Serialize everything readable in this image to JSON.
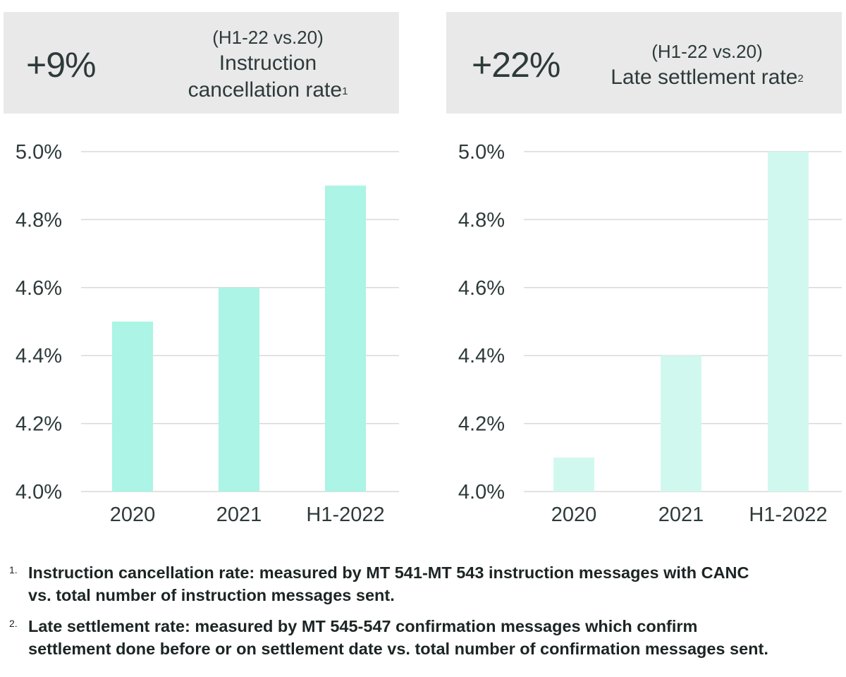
{
  "colors": {
    "header_bg": "#e9e9e9",
    "bar_left": "#abf4e6",
    "bar_right": "#d1f8ef",
    "grid": "#d9d9d9",
    "text": "#2e3a3a"
  },
  "panels": [
    {
      "big_value": "+9%",
      "sub": "(H1-22 vs.20)",
      "title_lines": [
        "Instruction",
        "cancellation rate"
      ],
      "footnote_ref": "1"
    },
    {
      "big_value": "+22%",
      "sub": "(H1-22 vs.20)",
      "title_lines": [
        "Late settlement rate"
      ],
      "footnote_ref": "2"
    }
  ],
  "chart_data": [
    {
      "type": "bar",
      "title": "Instruction cancellation rate",
      "categories": [
        "2020",
        "2021",
        "H1-2022"
      ],
      "values": [
        4.5,
        4.6,
        4.9
      ],
      "ylim": [
        4.0,
        5.0
      ],
      "yticks": [
        "4.0%",
        "4.2%",
        "4.4%",
        "4.6%",
        "4.8%",
        "5.0%"
      ],
      "grid": true
    },
    {
      "type": "bar",
      "title": "Late settlement rate",
      "categories": [
        "2020",
        "2021",
        "H1-2022"
      ],
      "values": [
        4.1,
        4.4,
        5.0
      ],
      "ylim": [
        4.0,
        5.0
      ],
      "yticks": [
        "4.0%",
        "4.2%",
        "4.4%",
        "4.6%",
        "4.8%",
        "5.0%"
      ],
      "grid": true
    }
  ],
  "footnotes": [
    {
      "num": "1.",
      "lines": [
        "Instruction cancellation rate: measured by MT 541-MT 543 instruction messages with CANC",
        "vs. total number of instruction messages sent."
      ]
    },
    {
      "num": "2.",
      "lines": [
        "Late settlement rate: measured by MT 545-547 confirmation messages which confirm",
        "settlement done before or on settlement date vs. total number of confirmation messages sent."
      ]
    }
  ]
}
